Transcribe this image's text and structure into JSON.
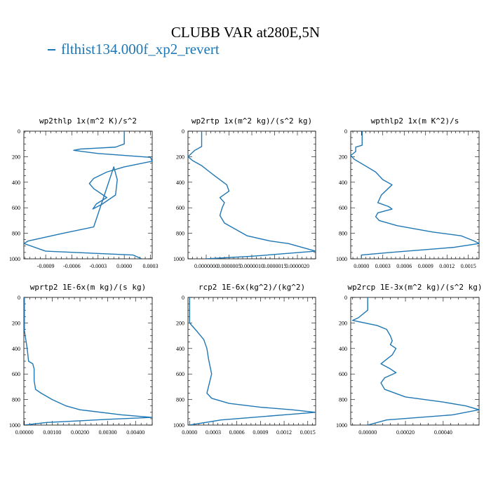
{
  "title": "CLUBB VAR at280E,5N",
  "legend": {
    "label": "flthist134.000f_xp2_revert",
    "color": "#1f77b4"
  },
  "chart_data": [
    {
      "type": "line",
      "title": "wp2thlp  1x(m^2 K)/s^2",
      "xlim": [
        -0.00115,
        0.00032
      ],
      "ylim": [
        1000,
        0
      ],
      "x_ticks": [
        -0.0009,
        -0.0006,
        -0.0003,
        0.0,
        0.0003
      ],
      "x_tick_labels": [
        "-0.0009",
        "-0.0006",
        "-0.0003",
        "0.0000",
        "0.0003"
      ],
      "y_ticks": [
        0,
        200,
        400,
        600,
        800,
        1000
      ],
      "series": [
        {
          "x": [
            0.0,
            0.0,
            -0.0001,
            -0.0005,
            -0.00058,
            -0.0003,
            0.0003,
            0.00032,
            0.0,
            -0.0002,
            -0.00035,
            -0.0004,
            -0.00035,
            -0.0002,
            -0.00032,
            -0.00036,
            -0.00025,
            -0.0001,
            -8e-05,
            -0.00012,
            -0.00035,
            -0.0007,
            -0.0011,
            -0.00115,
            -0.0009,
            0.0001,
            0.0002
          ],
          "y": [
            0,
            100,
            125,
            140,
            150,
            175,
            205,
            235,
            280,
            320,
            370,
            410,
            450,
            520,
            570,
            610,
            570,
            500,
            380,
            280,
            750,
            800,
            860,
            880,
            940,
            970,
            1000
          ]
        }
      ]
    },
    {
      "type": "line",
      "title": "wp2rtp  1x(m^2 kg)/(s^2 kg)",
      "xlim": [
        -4e-07,
        2.4e-06
      ],
      "ylim": [
        1000,
        0
      ],
      "x_ticks": [
        0.0,
        5e-07,
        1e-06,
        1.5e-06,
        2e-06
      ],
      "x_tick_labels": [
        "0.0000000",
        "0.0000005",
        "0.0000010",
        "0.0000015",
        "0.0000020"
      ],
      "y_ticks": [
        0,
        200,
        400,
        600,
        800,
        1000
      ],
      "series": [
        {
          "x": [
            -1e-07,
            -1e-07,
            -2.5e-07,
            -4e-07,
            -3e-07,
            -1e-07,
            1.5e-07,
            3e-07,
            4.5e-07,
            5e-07,
            3e-07,
            4e-07,
            3.5e-07,
            3e-07,
            4e-07,
            9e-07,
            1.4e-06,
            1.8e-06,
            2e-06,
            2.2e-06,
            2.4e-06,
            1e-06,
            0.0
          ],
          "y": [
            0,
            120,
            150,
            200,
            230,
            270,
            340,
            380,
            420,
            470,
            520,
            560,
            600,
            660,
            720,
            820,
            860,
            880,
            900,
            920,
            940,
            980,
            1000
          ]
        }
      ]
    },
    {
      "type": "line",
      "title": "wpthlp2  1x(m K^2)/s",
      "xlim": [
        -0.00015,
        0.00165
      ],
      "ylim": [
        1000,
        0
      ],
      "x_ticks": [
        0.0,
        0.0003,
        0.0006,
        0.0009,
        0.0012,
        0.0015
      ],
      "x_tick_labels": [
        "0.0000",
        "0.0003",
        "0.0006",
        "0.0009",
        "0.0012",
        "0.0015"
      ],
      "y_ticks": [
        0,
        200,
        400,
        600,
        800,
        1000
      ],
      "series": [
        {
          "x": [
            1e-05,
            1e-05,
            -8e-05,
            -8e-05,
            -0.00015,
            -0.0001,
            8e-05,
            0.0002,
            0.0003,
            0.00043,
            0.00028,
            0.00023,
            0.00038,
            0.00043,
            0.00023,
            0.0002,
            0.00025,
            0.0005,
            0.001,
            0.0014,
            0.00158,
            0.00165,
            0.0013,
            0.0004,
            0.0,
            0.0
          ],
          "y": [
            0,
            110,
            125,
            160,
            190,
            220,
            280,
            320,
            380,
            420,
            500,
            560,
            590,
            610,
            640,
            670,
            700,
            740,
            790,
            820,
            860,
            880,
            910,
            950,
            970,
            1000
          ]
        }
      ]
    },
    {
      "type": "line",
      "title": "wprtp2  1E-6x(m kg)/(s kg)",
      "xlim": [
        -2e-05,
        0.0046
      ],
      "ylim": [
        1000,
        0
      ],
      "x_ticks": [
        0.0,
        0.001,
        0.002,
        0.003,
        0.004
      ],
      "x_tick_labels": [
        "0.00000",
        "0.00100",
        "0.00200",
        "0.00300",
        "0.00400"
      ],
      "y_ticks": [
        0,
        200,
        400,
        600,
        800,
        1000
      ],
      "series": [
        {
          "x": [
            0.0,
            0.0,
            0.0001,
            0.00015,
            0.0003,
            0.00035,
            0.00035,
            0.0004,
            0.0006,
            0.001,
            0.0015,
            0.002,
            0.0035,
            0.0046,
            0.003,
            0.0008,
            0.0
          ],
          "y": [
            0,
            260,
            400,
            500,
            520,
            560,
            650,
            720,
            750,
            800,
            850,
            880,
            920,
            940,
            955,
            980,
            1000
          ]
        }
      ]
    },
    {
      "type": "line",
      "title": "rcp2  1E-6x(kg^2)/(kg^2)",
      "xlim": [
        -2e-05,
        0.0016
      ],
      "ylim": [
        1000,
        0
      ],
      "x_ticks": [
        0.0,
        0.0003,
        0.0006,
        0.0009,
        0.0012,
        0.0015
      ],
      "x_tick_labels": [
        "0.0000",
        "0.0003",
        "0.0006",
        "0.0009",
        "0.0012",
        "0.0015"
      ],
      "y_ticks": [
        0,
        200,
        400,
        600,
        800,
        1000
      ],
      "series": [
        {
          "x": [
            0.0,
            0.0,
            0.0001,
            0.00018,
            0.00022,
            0.00024,
            0.00028,
            0.00024,
            0.00022,
            0.00028,
            0.0005,
            0.0009,
            0.0013,
            0.0016,
            0.0012,
            0.0004,
            0.0
          ],
          "y": [
            0,
            200,
            270,
            330,
            400,
            480,
            600,
            700,
            750,
            790,
            830,
            860,
            880,
            900,
            920,
            960,
            1000
          ]
        }
      ]
    },
    {
      "type": "line",
      "title": "wp2rcp  1E-3x(m^2 kg)/(s^2 kg)",
      "xlim": [
        -9e-05,
        0.00059
      ],
      "ylim": [
        1000,
        0
      ],
      "x_ticks": [
        0.0,
        0.0002,
        0.0004
      ],
      "x_tick_labels": [
        "0.00000",
        "0.00020",
        "0.00040"
      ],
      "y_ticks": [
        0,
        200,
        400,
        600,
        800,
        1000
      ],
      "series": [
        {
          "x": [
            0.0,
            0.0,
            -5e-05,
            -8e-05,
            5e-05,
            0.0001,
            0.00012,
            0.00013,
            0.00012,
            0.00015,
            0.00013,
            7e-05,
            0.00012,
            0.00015,
            9e-05,
            7e-05,
            9e-05,
            0.0002,
            0.0004,
            0.00052,
            0.00059,
            0.00045,
            0.0001,
            0.0
          ],
          "y": [
            0,
            100,
            160,
            180,
            220,
            250,
            300,
            340,
            370,
            400,
            450,
            520,
            560,
            590,
            630,
            670,
            720,
            780,
            820,
            850,
            880,
            920,
            960,
            1000
          ]
        }
      ]
    }
  ]
}
